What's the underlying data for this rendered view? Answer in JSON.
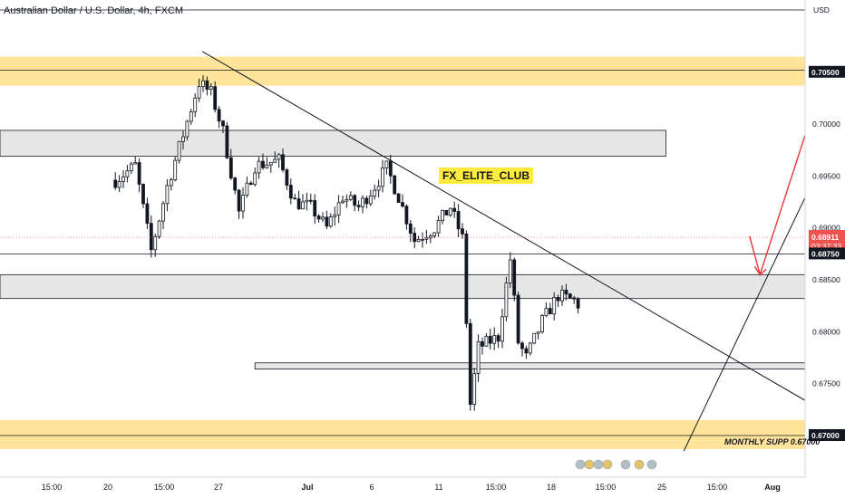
{
  "header": {
    "title": "Australian Dollar / U.S. Dollar, 4h, FXCM"
  },
  "labels": {
    "badge": "FX_ELITE_CLUB",
    "monthly_supp": "MONTHLY SUPP 0.67000",
    "currency": "USD"
  },
  "colors": {
    "up": "#26a69a",
    "down": "#ef5350",
    "candle_dark": "#131722",
    "candle_light": "#ffffff",
    "zone_yellow": "#ffe49a",
    "zone_gray": "#e6e6e6",
    "arrow": "#e53935"
  },
  "price_tags": {
    "current_price": "0.68911",
    "countdown": "03:37:33",
    "line_price": "0.68750",
    "resistance": "0.70500",
    "support": "0.67000"
  },
  "chart_data": {
    "type": "candlestick",
    "title": "Australian Dollar / U.S. Dollar, 4h, FXCM",
    "y_ticks": [
      "0.70500",
      "0.70000",
      "0.69500",
      "0.69000",
      "0.68500",
      "0.68000",
      "0.67500",
      "0.67000"
    ],
    "y_range": [
      0.6658,
      0.7115
    ],
    "x_ticks": [
      "15:00",
      "20",
      "15:00",
      "27",
      "Jul",
      "6",
      "11",
      "15:00",
      "18",
      "15:00",
      "25",
      "15:00",
      "Aug"
    ],
    "zones": [
      {
        "kind": "resistance",
        "top": 0.7065,
        "bottom": 0.7037
      },
      {
        "kind": "gray",
        "top": 0.6994,
        "bottom": 0.6969,
        "end_candle": 176
      },
      {
        "kind": "gray",
        "top": 0.6855,
        "bottom": 0.6832
      },
      {
        "kind": "gray",
        "top": 0.677,
        "bottom": 0.6764
      },
      {
        "kind": "support",
        "top": 0.6715,
        "bottom": 0.6687
      }
    ],
    "levels": [
      0.711,
      0.7052,
      0.6875,
      0.67
    ],
    "trendlines": [
      {
        "from": [
          21.8,
          0.707
        ],
        "to": [
          198,
          0.6678
        ]
      },
      {
        "from": [
          142.5,
          0.6685
        ],
        "to": [
          173,
          0.693
        ]
      }
    ],
    "projection": [
      [
        159,
        0.6892
      ],
      [
        161.6,
        0.6855
      ],
      [
        178,
        0.705
      ]
    ],
    "candles_count": 162,
    "close_start": 0.6946,
    "close_path": [
      [
        0,
        0.6946
      ],
      [
        5,
        0.696
      ],
      [
        9,
        0.6878
      ],
      [
        13,
        0.694
      ],
      [
        17,
        0.699
      ],
      [
        21,
        0.704
      ],
      [
        24,
        0.703
      ],
      [
        27,
        0.6993
      ],
      [
        31,
        0.6915
      ],
      [
        35,
        0.696
      ],
      [
        41,
        0.6965
      ],
      [
        45,
        0.6925
      ],
      [
        49,
        0.692
      ],
      [
        53,
        0.69
      ],
      [
        57,
        0.693
      ],
      [
        61,
        0.692
      ],
      [
        65,
        0.694
      ],
      [
        68,
        0.6958
      ],
      [
        71,
        0.693
      ],
      [
        75,
        0.6888
      ],
      [
        80,
        0.69
      ],
      [
        84,
        0.692
      ],
      [
        87,
        0.689
      ],
      [
        89,
        0.673
      ],
      [
        91,
        0.6785
      ],
      [
        96,
        0.6795
      ],
      [
        99,
        0.687
      ],
      [
        101,
        0.679
      ],
      [
        103,
        0.6775
      ],
      [
        107,
        0.681
      ],
      [
        111,
        0.6835
      ],
      [
        115,
        0.683
      ],
      [
        119,
        0.6815
      ],
      [
        122,
        0.682
      ],
      [
        124,
        0.674
      ],
      [
        127,
        0.6722
      ],
      [
        131,
        0.677
      ],
      [
        135,
        0.6785
      ],
      [
        139,
        0.6755
      ],
      [
        142,
        0.671
      ],
      [
        144,
        0.673
      ],
      [
        146,
        0.6755
      ],
      [
        149,
        0.679
      ],
      [
        152,
        0.6812
      ],
      [
        155,
        0.684
      ],
      [
        157,
        0.681
      ],
      [
        158,
        0.681
      ],
      [
        159,
        0.6891
      ],
      [
        161,
        0.6891
      ]
    ],
    "candle_volatility": 0.0014
  }
}
